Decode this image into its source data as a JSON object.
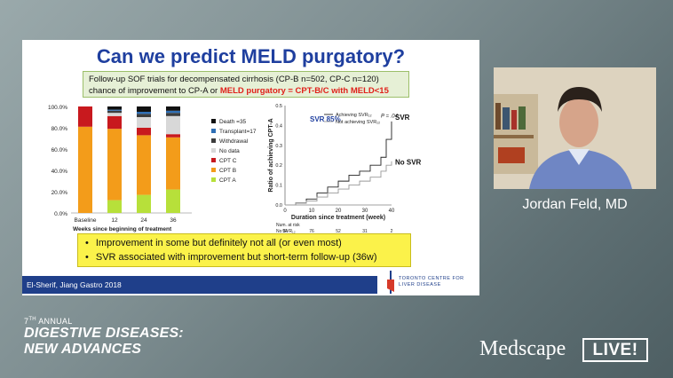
{
  "slide": {
    "title": "Can we predict MELD purgatory?",
    "subtitle_part1": "Follow-up SOF trials for decompensated cirrhosis (CP-B n=502, CP-C n=120) chance of improvement to CP-A or ",
    "subtitle_red": "MELD purgatory = CPT-B/C with MELD<15",
    "bullets": [
      "Improvement in some but definitely not all (or even most)",
      "SVR associated with improvement but short-term follow-up (36w)"
    ],
    "citation": "El-Sherif, Jiang Gastro 2018",
    "logo_line1": "TORONTO CENTRE FOR",
    "logo_line2": "LIVER DISEASE"
  },
  "chart_data": [
    {
      "type": "bar",
      "xlabel": "Weeks since beginning of treatment",
      "categories": [
        "Baseline",
        "12",
        "24",
        "36"
      ],
      "ylim": [
        0,
        100
      ],
      "yticks": [
        "0.0%",
        "20.0%",
        "40.0%",
        "60.0%",
        "80.0%",
        "100.0%"
      ],
      "series": [
        {
          "name": "CPT A",
          "color": "#b7e03a",
          "values": [
            0,
            12,
            17,
            22
          ]
        },
        {
          "name": "CPT B",
          "color": "#f39c1a",
          "values": [
            81,
            67,
            56,
            49
          ]
        },
        {
          "name": "CPT C",
          "color": "#c8191e",
          "values": [
            19,
            12,
            7,
            3
          ]
        },
        {
          "name": "No data",
          "color": "#d8d8d8",
          "values": [
            0,
            3,
            10,
            17
          ]
        },
        {
          "name": "Withdrawal",
          "color": "#3d3d3d",
          "values": [
            0,
            2,
            3,
            3
          ]
        },
        {
          "name": "Transplant",
          "color": "#2f6fb5",
          "values": [
            0,
            1,
            2,
            2
          ]
        },
        {
          "name": "Death",
          "color": "#111111",
          "values": [
            0,
            3,
            5,
            4
          ]
        }
      ],
      "legend": [
        "Death =35",
        "Transplant=17",
        "Withdrawal",
        "No data",
        "CPT C",
        "CPT B",
        "CPT A"
      ],
      "legend_colors": [
        "#111111",
        "#2f6fb5",
        "#3d3d3d",
        "#d8d8d8",
        "#c8191e",
        "#f39c1a",
        "#b7e03a"
      ]
    },
    {
      "type": "line",
      "ylabel": "Ratio of achieving CPT-A",
      "xlabel": "Duration since treatment (week)",
      "xlim": [
        0,
        40
      ],
      "ylim": [
        0,
        0.5
      ],
      "xticks": [
        "0",
        "10",
        "20",
        "30",
        "40"
      ],
      "yticks": [
        "0.0",
        "0.1",
        "0.2",
        "0.3",
        "0.4",
        "0.5"
      ],
      "annotation": "SVR 85%",
      "pvalue": "P = .04",
      "legend": [
        "Achieving SVR₁₂",
        "Not achieving SVR₁₂"
      ],
      "series": [
        {
          "name": "SVR",
          "x": [
            0,
            4,
            8,
            12,
            16,
            20,
            24,
            28,
            32,
            36,
            38,
            40
          ],
          "y": [
            0,
            0.01,
            0.03,
            0.06,
            0.09,
            0.12,
            0.15,
            0.17,
            0.2,
            0.24,
            0.33,
            0.42
          ]
        },
        {
          "name": "No SVR",
          "x": [
            0,
            4,
            8,
            12,
            16,
            20,
            24,
            28,
            32,
            36,
            38,
            40
          ],
          "y": [
            0,
            0.01,
            0.02,
            0.04,
            0.06,
            0.08,
            0.1,
            0.12,
            0.14,
            0.17,
            0.2,
            0.22
          ]
        }
      ],
      "risk_table": {
        "title": "Num. at risk",
        "rows": [
          {
            "label": "No SVR₁₂",
            "values": [
              "94",
              "76",
              "52",
              "31",
              "2"
            ]
          },
          {
            "label": "SVR₁₂",
            "values": [
              "528",
              "490",
              "463",
              "404",
              "6"
            ]
          }
        ]
      }
    }
  ],
  "video": {
    "speaker_name": "Jordan Feld, MD"
  },
  "branding": {
    "annual_number": "7",
    "annual_suffix": "TH",
    "annual_word": "ANNUAL",
    "line1": "DIGESTIVE DISEASES:",
    "line2": "NEW ADVANCES",
    "medscape": "Medscape",
    "live": "LIVE!"
  }
}
